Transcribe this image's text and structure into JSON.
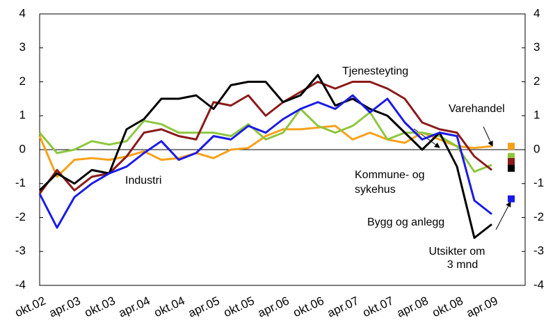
{
  "chart_data": {
    "type": "line",
    "categories": [
      "okt.02",
      null,
      "apr.03",
      null,
      "okt.03",
      null,
      "apr.04",
      null,
      "okt.04",
      null,
      "apr.05",
      null,
      "okt.05",
      null,
      "apr.06",
      null,
      "okt.06",
      null,
      "apr.07",
      null,
      "okt.07",
      null,
      "apr.08",
      null,
      "okt.08",
      null,
      "apr.09",
      null
    ],
    "ylim": [
      -4,
      4
    ],
    "yticks": [
      -4,
      -3,
      -2,
      -1,
      0,
      1,
      2,
      3,
      4
    ],
    "y2lim": [
      -4,
      4
    ],
    "y2ticks": [
      -4,
      -3,
      -2,
      -1,
      0,
      1,
      2,
      3,
      4
    ],
    "series": [
      {
        "name": "Kommune- og sykehus",
        "color": "#f7a11a",
        "values": [
          0.4,
          -0.8,
          -0.3,
          -0.25,
          -0.3,
          -0.2,
          -0.05,
          -0.3,
          -0.25,
          -0.1,
          -0.25,
          0.0,
          0.05,
          0.4,
          0.6,
          0.6,
          0.65,
          0.7,
          0.3,
          0.5,
          0.3,
          0.2,
          0.5,
          0.3,
          0.1,
          0.05,
          0.1,
          null
        ],
        "outlook": 0.1
      },
      {
        "name": "Varehandel",
        "color": "#8dc63f",
        "values": [
          0.5,
          -0.1,
          0.0,
          0.25,
          0.15,
          0.25,
          0.85,
          0.75,
          0.5,
          0.5,
          0.5,
          0.4,
          0.75,
          0.3,
          0.5,
          1.2,
          0.7,
          0.5,
          0.7,
          1.1,
          0.3,
          0.5,
          0.5,
          0.4,
          0.1,
          -0.65,
          -0.45,
          null
        ],
        "outlook": -0.2
      },
      {
        "name": "Tjenesteyting",
        "color": "#8b1a1a",
        "values": [
          -1.3,
          -0.6,
          -1.2,
          -0.8,
          -0.7,
          -0.2,
          0.5,
          0.6,
          0.4,
          0.3,
          1.4,
          1.3,
          1.6,
          1.0,
          1.4,
          1.7,
          2.0,
          1.8,
          2.0,
          2.0,
          1.8,
          1.5,
          0.8,
          0.6,
          0.5,
          -0.2,
          -0.6,
          null
        ],
        "outlook": -0.35
      },
      {
        "name": "Bygg og anlegg",
        "color": "#000000",
        "values": [
          -1.2,
          -0.7,
          -1.0,
          -0.6,
          -0.7,
          0.6,
          0.9,
          1.5,
          1.5,
          1.6,
          1.2,
          1.9,
          2.0,
          2.0,
          1.4,
          1.6,
          2.2,
          1.3,
          1.5,
          1.2,
          1.0,
          0.5,
          0.0,
          0.5,
          -0.5,
          -2.6,
          -2.2,
          null
        ],
        "outlook": -0.55
      },
      {
        "name": "Industri",
        "color": "#1a1ae6",
        "values": [
          -1.3,
          -2.3,
          -1.4,
          -1.0,
          -0.7,
          -0.5,
          -0.1,
          0.25,
          -0.3,
          -0.1,
          0.4,
          0.3,
          0.7,
          0.5,
          0.9,
          1.2,
          1.4,
          1.2,
          1.6,
          1.1,
          1.5,
          0.8,
          0.3,
          0.5,
          0.4,
          -1.5,
          -1.9,
          null
        ],
        "outlook": -1.45
      }
    ],
    "annotations": [
      "Utsikter om",
      "3 mnd"
    ]
  }
}
